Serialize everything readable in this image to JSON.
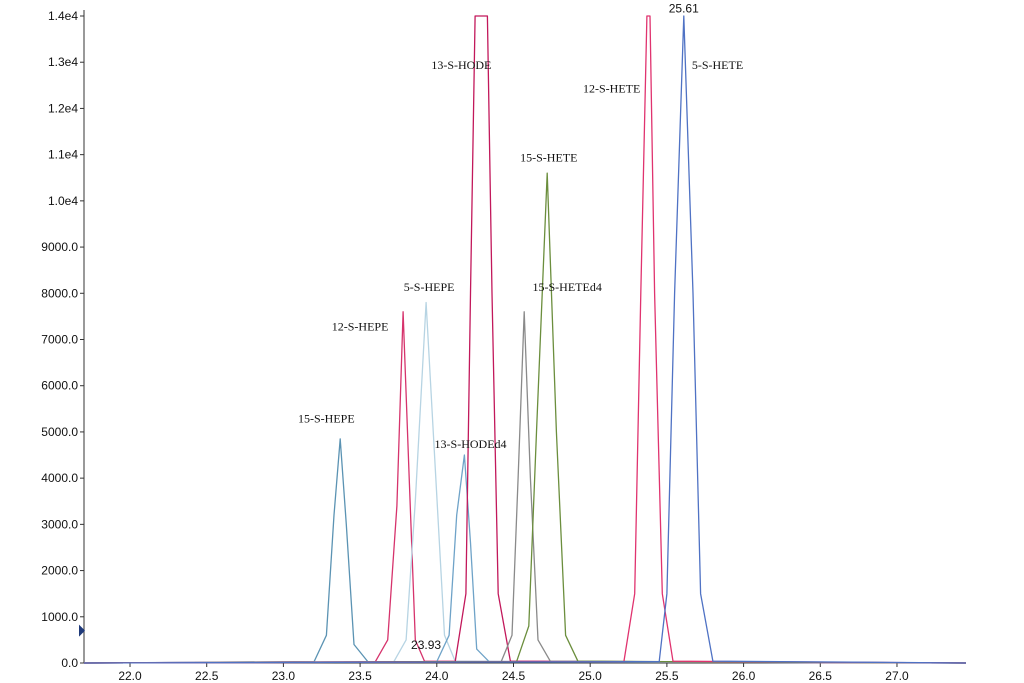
{
  "chart_data": {
    "type": "line",
    "title": "",
    "xlabel": "",
    "ylabel": "",
    "xlim": [
      21.7,
      27.45
    ],
    "ylim": [
      0,
      14000
    ],
    "x_ticks": [
      "22.0",
      "22.5",
      "23.0",
      "23.5",
      "24.0",
      "24.5",
      "25.0",
      "25.5",
      "26.0",
      "26.5",
      "27.0"
    ],
    "y_ticks": [
      "0.0",
      "1000.0",
      "2000.0",
      "3000.0",
      "4000.0",
      "5000.0",
      "6000.0",
      "7000.0",
      "8000.0",
      "9000.0",
      "1.0e4",
      "1.1e4",
      "1.2e4",
      "1.3e4",
      "1.4e4"
    ],
    "grid": false,
    "series": [
      {
        "name": "15-S-HEPE",
        "color": "#5b93b3",
        "x": [
          21.7,
          23.2,
          23.28,
          23.33,
          23.37,
          23.41,
          23.46,
          23.55,
          27.45
        ],
        "y": [
          0,
          30,
          600,
          3200,
          4850,
          3000,
          400,
          30,
          0
        ]
      },
      {
        "name": "12-S-HEPE",
        "color": "#d6336c",
        "x": [
          21.7,
          23.6,
          23.68,
          23.74,
          23.78,
          23.82,
          23.86,
          23.92,
          27.45
        ],
        "y": [
          0,
          30,
          500,
          3400,
          7600,
          4000,
          500,
          40,
          0
        ]
      },
      {
        "name": "5-S-HEPE",
        "color": "#b7d4e3",
        "x": [
          21.7,
          23.72,
          23.8,
          23.86,
          23.93,
          23.99,
          24.05,
          24.12,
          27.45
        ],
        "y": [
          0,
          30,
          500,
          3500,
          7800,
          4200,
          600,
          40,
          0
        ]
      },
      {
        "name": "13-S-HODEd4",
        "color": "#6fa3c8",
        "x": [
          21.7,
          24.0,
          24.08,
          24.13,
          24.18,
          24.22,
          24.26,
          24.34,
          27.45
        ],
        "y": [
          0,
          30,
          600,
          3200,
          4500,
          2600,
          300,
          30,
          0
        ]
      },
      {
        "name": "13-S-HODE",
        "color": "#c2185b",
        "x": [
          21.7,
          24.12,
          24.19,
          24.22,
          24.25,
          24.33,
          24.36,
          24.4,
          24.48,
          27.45
        ],
        "y": [
          0,
          30,
          1500,
          8000,
          14000,
          14000,
          8000,
          1500,
          40,
          0
        ]
      },
      {
        "name": "15-S-HETEd4",
        "color": "#8a8a8a",
        "x": [
          21.7,
          24.42,
          24.49,
          24.53,
          24.57,
          24.61,
          24.66,
          24.74,
          27.45
        ],
        "y": [
          0,
          30,
          600,
          4000,
          7600,
          4000,
          500,
          40,
          0
        ]
      },
      {
        "name": "15-S-HETE",
        "color": "#6b8e3d",
        "x": [
          21.7,
          24.52,
          24.6,
          24.65,
          24.72,
          24.78,
          24.84,
          24.92,
          27.45
        ],
        "y": [
          0,
          30,
          800,
          5000,
          10600,
          5000,
          600,
          40,
          0
        ]
      },
      {
        "name": "12-S-HETE",
        "color": "#e0336f",
        "x": [
          21.7,
          25.22,
          25.29,
          25.33,
          25.37,
          25.39,
          25.42,
          25.47,
          25.54,
          27.45
        ],
        "y": [
          0,
          30,
          1500,
          8000,
          14000,
          14000,
          8000,
          1500,
          40,
          0
        ]
      },
      {
        "name": "5-S-HETE",
        "color": "#4f72c4",
        "x": [
          21.7,
          25.45,
          25.5,
          25.55,
          25.61,
          25.67,
          25.72,
          25.8,
          27.45
        ],
        "y": [
          0,
          30,
          1500,
          8000,
          14000,
          8000,
          1500,
          40,
          0
        ]
      }
    ],
    "peak_labels": [
      {
        "text": "15-S-HEPE",
        "x": 23.28,
        "y": 5200
      },
      {
        "text": "12-S-HEPE",
        "x": 23.5,
        "y": 7200
      },
      {
        "text": "5-S-HEPE",
        "x": 23.95,
        "y": 8050
      },
      {
        "text": "13-S-HODEd4",
        "x": 24.22,
        "y": 4650
      },
      {
        "text": "13-S-HODE",
        "x": 24.16,
        "y": 12850
      },
      {
        "text": "15-S-HETEd4",
        "x": 24.85,
        "y": 8050
      },
      {
        "text": "15-S-HETE",
        "x": 24.73,
        "y": 10850
      },
      {
        "text": "12-S-HETE",
        "x": 25.14,
        "y": 12350
      },
      {
        "text": "5-S-HETE",
        "x": 25.83,
        "y": 12850
      }
    ],
    "apex_labels": [
      {
        "text": "25.61",
        "x": 25.61,
        "y": 14100
      },
      {
        "text": "23.93",
        "x": 23.93,
        "y": 320
      }
    ],
    "marker_y": 700
  }
}
